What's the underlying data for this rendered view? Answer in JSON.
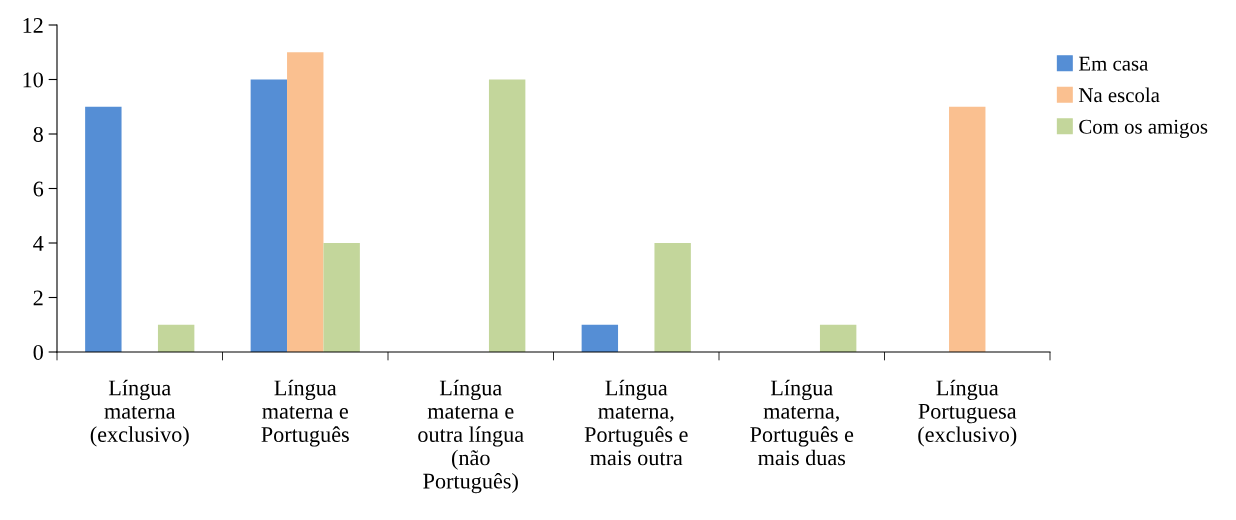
{
  "chart_data": {
    "type": "bar",
    "categories": [
      "Língua\nmaterna\n(exclusivo)",
      "Língua\nmaterna e\nPortuguês",
      "Língua\nmaterna e\noutra língua\n(não\nPortuguês)",
      "Língua\nmaterna,\nPortuguês e\nmais outra",
      "Língua\nmaterna,\nPortuguês e\nmais duas",
      "Língua\nPortuguesa\n(exclusivo)"
    ],
    "series": [
      {
        "name": "Em casa",
        "color": "#558ed5",
        "values": [
          9,
          10,
          0,
          1,
          0,
          0
        ]
      },
      {
        "name": "Na escola",
        "color": "#fac090",
        "values": [
          0,
          11,
          0,
          0,
          0,
          9
        ]
      },
      {
        "name": "Com os amigos",
        "color": "#c3d69b",
        "values": [
          1,
          4,
          10,
          4,
          1,
          0
        ]
      }
    ],
    "ylim": [
      0,
      12
    ],
    "yticks": [
      0,
      2,
      4,
      6,
      8,
      10,
      12
    ],
    "grid": false,
    "legend": "right"
  }
}
